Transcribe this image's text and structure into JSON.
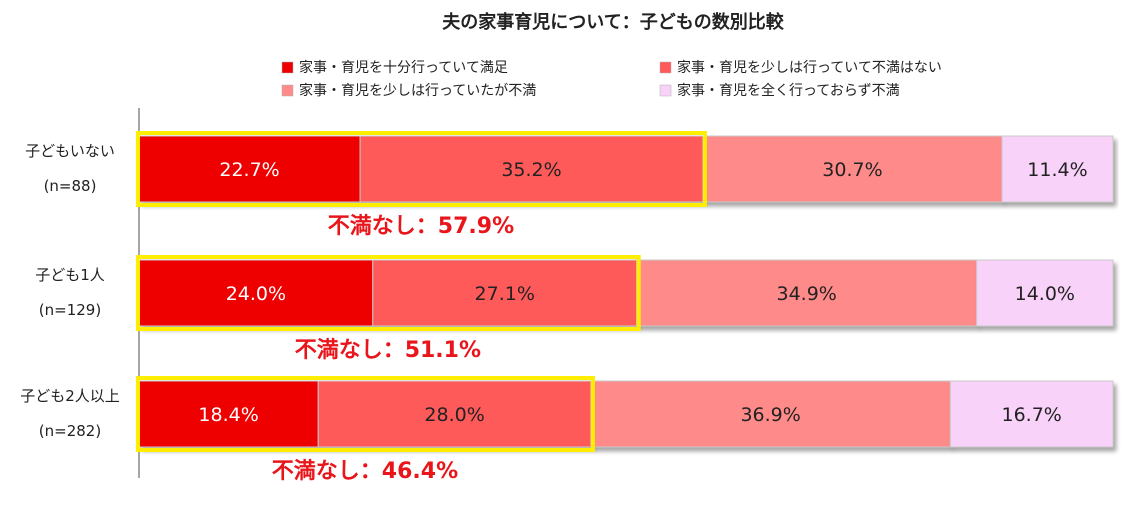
{
  "chart_data": {
    "type": "bar",
    "orientation": "horizontal",
    "stacked": true,
    "percent": true,
    "title": "夫の家事育児について：子どもの数別比較",
    "categories": [
      {
        "name": "子どもいない",
        "n": "(n=88)"
      },
      {
        "name": "子ども1人",
        "n": "(n=129)"
      },
      {
        "name": "子ども2人以上",
        "n": "(n=282)"
      }
    ],
    "series": [
      {
        "name": "家事・育児を十分行っていて満足",
        "values": [
          22.7,
          24.0,
          18.4
        ],
        "color": "#ee0000",
        "label_color": "#ffffff"
      },
      {
        "name": "家事・育児を少しは行っていて不満はない",
        "values": [
          35.2,
          27.1,
          28.0
        ],
        "color": "#ff5a5a",
        "label_color": "#222222"
      },
      {
        "name": "家事・育児を少しは行っていたが不満",
        "values": [
          30.7,
          34.9,
          36.9
        ],
        "color": "#ff8a8a",
        "label_color": "#222222"
      },
      {
        "name": "家事・育児を全く行っておらず不満",
        "values": [
          11.4,
          14.0,
          16.7
        ],
        "color": "#f9d2f9",
        "label_color": "#222222"
      }
    ],
    "value_labels": [
      [
        "22.7%",
        "35.2%",
        "30.7%",
        "11.4%"
      ],
      [
        "24.0%",
        "27.1%",
        "34.9%",
        "14.0%"
      ],
      [
        "18.4%",
        "28.0%",
        "36.9%",
        "16.7%"
      ]
    ],
    "annotations": [
      {
        "text": "不満なし：57.9%",
        "value": 57.9
      },
      {
        "text": "不満なし：51.1%",
        "value": 51.1
      },
      {
        "text": "不満なし：46.4%",
        "value": 46.4
      }
    ],
    "highlight_color": "#ffee00",
    "legend_position": "top",
    "xlim": [
      0,
      100
    ],
    "grid": false
  }
}
